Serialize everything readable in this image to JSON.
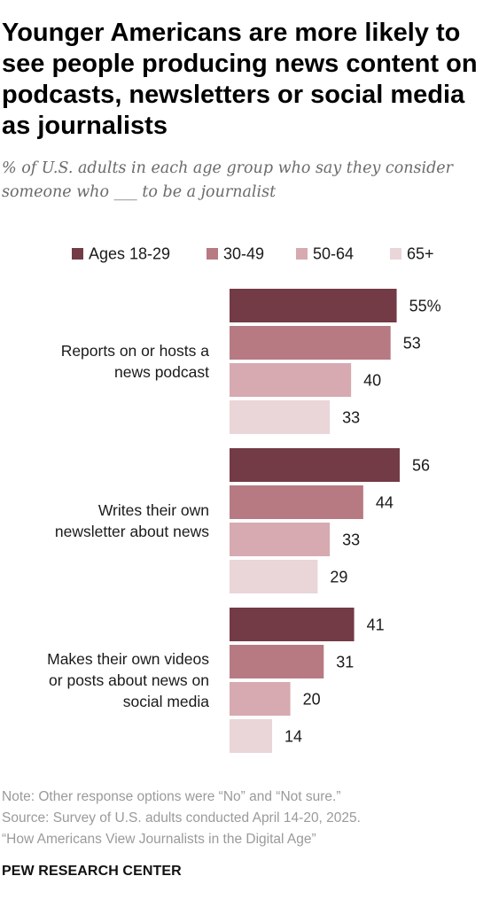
{
  "chart_data": {
    "type": "bar",
    "orientation": "horizontal",
    "title": "Younger Americans are more likely to see people producing news content on podcasts, newsletters or social media as journalists",
    "subtitle": "% of U.S. adults in each age group who say they consider someone who ___ to be a journalist",
    "categories": [
      [
        "Reports on or hosts a",
        "news podcast"
      ],
      [
        "Writes their own",
        "newsletter about news"
      ],
      [
        "Makes their own videos",
        "or posts about news on",
        "social media"
      ]
    ],
    "series": [
      {
        "name": "Ages 18-29",
        "color": "#733b46",
        "values": [
          55,
          56,
          41
        ],
        "labels": [
          "55%",
          "56",
          "41"
        ]
      },
      {
        "name": "30-49",
        "color": "#b77a83",
        "values": [
          53,
          44,
          31
        ],
        "labels": [
          "53",
          "44",
          "31"
        ]
      },
      {
        "name": "50-64",
        "color": "#d6aab0",
        "values": [
          40,
          33,
          20
        ],
        "labels": [
          "40",
          "33",
          "20"
        ]
      },
      {
        "name": "65+",
        "color": "#ead5d8",
        "values": [
          33,
          29,
          14
        ],
        "labels": [
          "33",
          "29",
          "14"
        ]
      }
    ],
    "xlim": [
      0,
      56
    ],
    "grid": false,
    "legend_position": "top"
  },
  "footer": {
    "note": "Note: Other response options were “No” and “Not sure.”",
    "source": "Source: Survey of U.S. adults conducted April 14-20, 2025.",
    "report": "“How Americans View Journalists in the Digital Age”",
    "brand": "PEW RESEARCH CENTER"
  }
}
